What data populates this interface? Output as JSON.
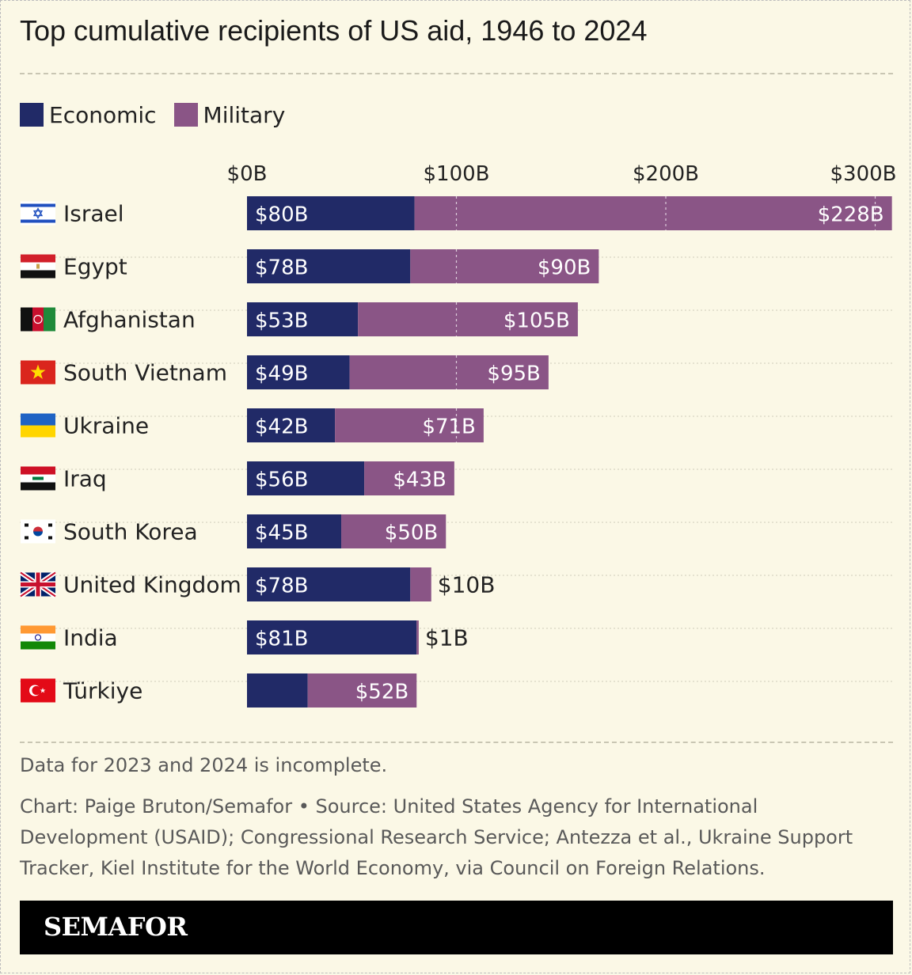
{
  "header": {
    "title": "Top cumulative recipients of US aid, 1946 to 2024"
  },
  "legend": [
    {
      "label": "Economic",
      "color": "#212a67"
    },
    {
      "label": "Military",
      "color": "#8a5586"
    }
  ],
  "chart_data": {
    "type": "bar",
    "orientation": "horizontal",
    "stacked": true,
    "categories": [
      "Israel",
      "Egypt",
      "Afghanistan",
      "South Vietnam",
      "Ukraine",
      "Iraq",
      "South Korea",
      "United Kingdom",
      "India",
      "Türkiye"
    ],
    "series": [
      {
        "name": "Economic",
        "color": "#212a67",
        "values": [
          80,
          78,
          53,
          49,
          42,
          56,
          45,
          78,
          81,
          29
        ],
        "labels": [
          "$80B",
          "$78B",
          "$53B",
          "$49B",
          "$42B",
          "$56B",
          "$45B",
          "$78B",
          "$81B",
          ""
        ]
      },
      {
        "name": "Military",
        "color": "#8a5586",
        "values": [
          228,
          90,
          105,
          95,
          71,
          43,
          50,
          10,
          1,
          52
        ],
        "labels": [
          "$228B",
          "$90B",
          "$105B",
          "$95B",
          "$71B",
          "$43B",
          "$50B",
          "$10B",
          "$1B",
          "$52B"
        ]
      }
    ],
    "x_ticks": [
      0,
      100,
      200,
      300
    ],
    "x_tick_labels": [
      "$0B",
      "$100B",
      "$200B",
      "$300B"
    ],
    "xlim": [
      0,
      308
    ],
    "grid": true,
    "legend_position": "top-left",
    "flags": [
      "israel-flag",
      "egypt-flag",
      "afghanistan-flag",
      "south-vietnam-flag",
      "ukraine-flag",
      "iraq-flag",
      "south-korea-flag",
      "united-kingdom-flag",
      "india-flag",
      "turkiye-flag"
    ]
  },
  "footer": {
    "note": "Data for 2023 and 2024 is incomplete.",
    "credit": "Chart: Paige Bruton/Semafor  • Source: United States Agency for International Development (USAID); Congressional Research Service; Antezza et al., Ukraine Support Tracker, Kiel Institute for the World Economy, via Council on Foreign Relations.",
    "brand": "SEMAFOR"
  }
}
